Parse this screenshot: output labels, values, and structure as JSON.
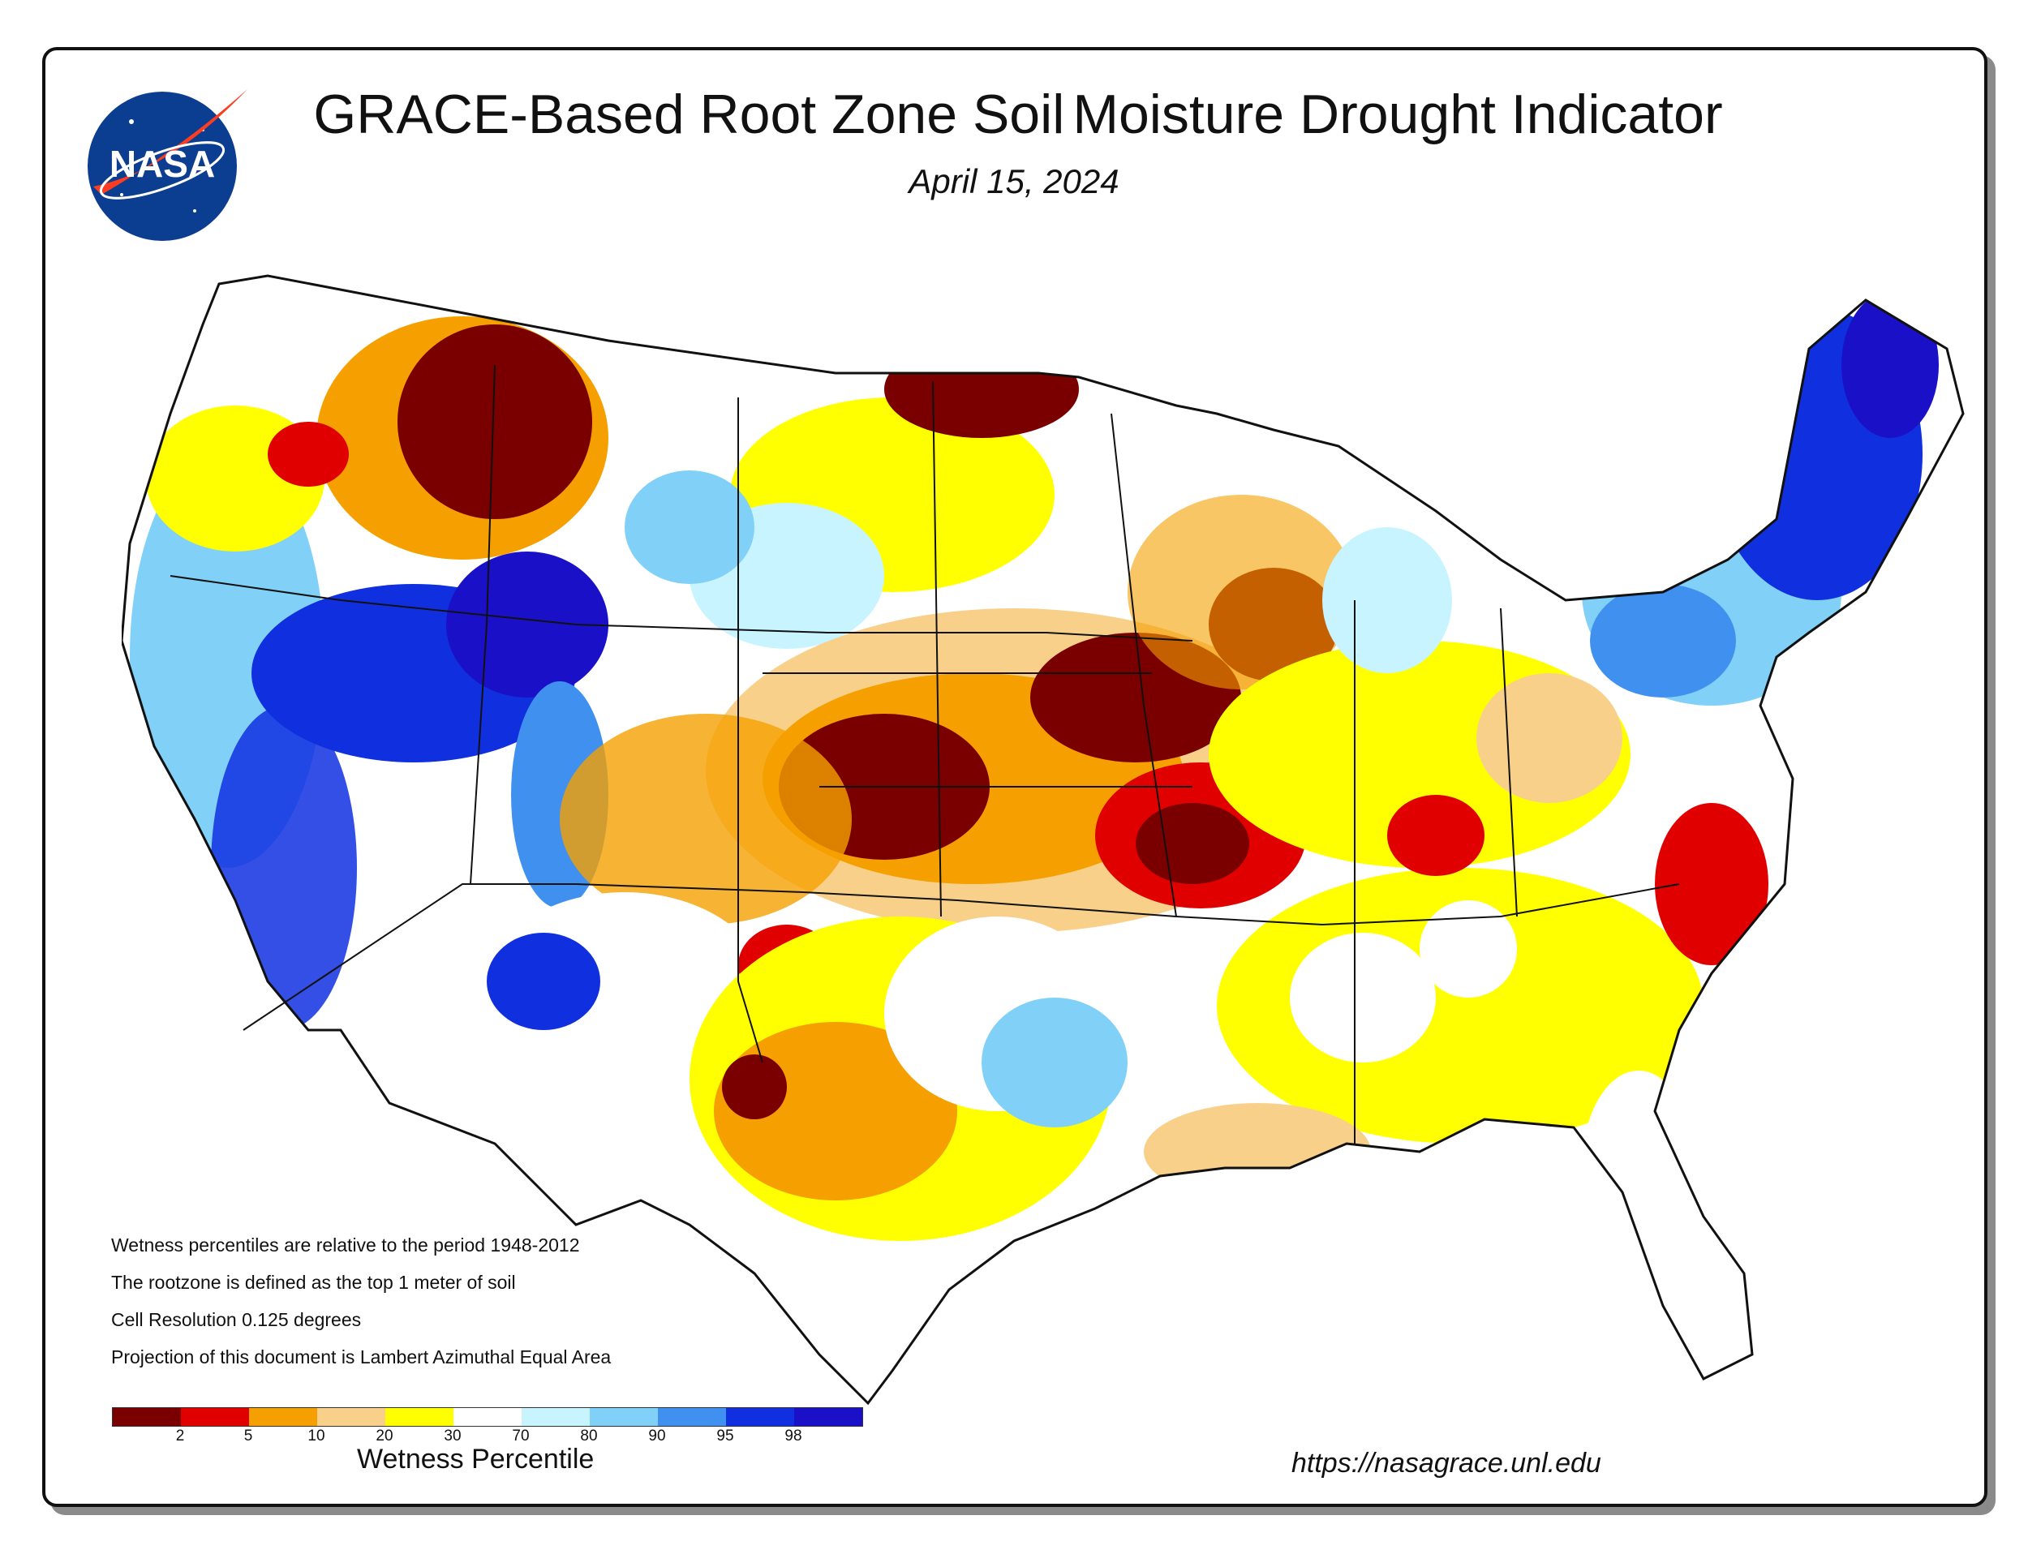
{
  "title_part1": "GRACE-Based Root Zone Soil",
  "title_part2": "Moisture Drought Indicator",
  "date": "April 15, 2024",
  "logo_text": "NASA",
  "notes": [
    "Wetness percentiles are relative to the period 1948-2012",
    "The rootzone is defined as the top 1 meter of soil",
    "Cell Resolution 0.125 degrees",
    "Projection of this document is Lambert Azimuthal Equal Area"
  ],
  "legend": {
    "title": "Wetness Percentile",
    "colors": [
      "#7a0000",
      "#e00000",
      "#f5a000",
      "#f9d08a",
      "#ffff00",
      "#ffffff",
      "#c8f4ff",
      "#80d0f8",
      "#4090f0",
      "#1030e0",
      "#1a10c8"
    ],
    "ticks": [
      "2",
      "5",
      "10",
      "20",
      "30",
      "70",
      "80",
      "90",
      "95",
      "98"
    ]
  },
  "url": "https://nasagrace.unl.edu",
  "colors": {
    "frame": "#111111",
    "shadow": "#8a8a8a",
    "nasa_blue": "#0b3d91",
    "nasa_red": "#fc3d21"
  }
}
